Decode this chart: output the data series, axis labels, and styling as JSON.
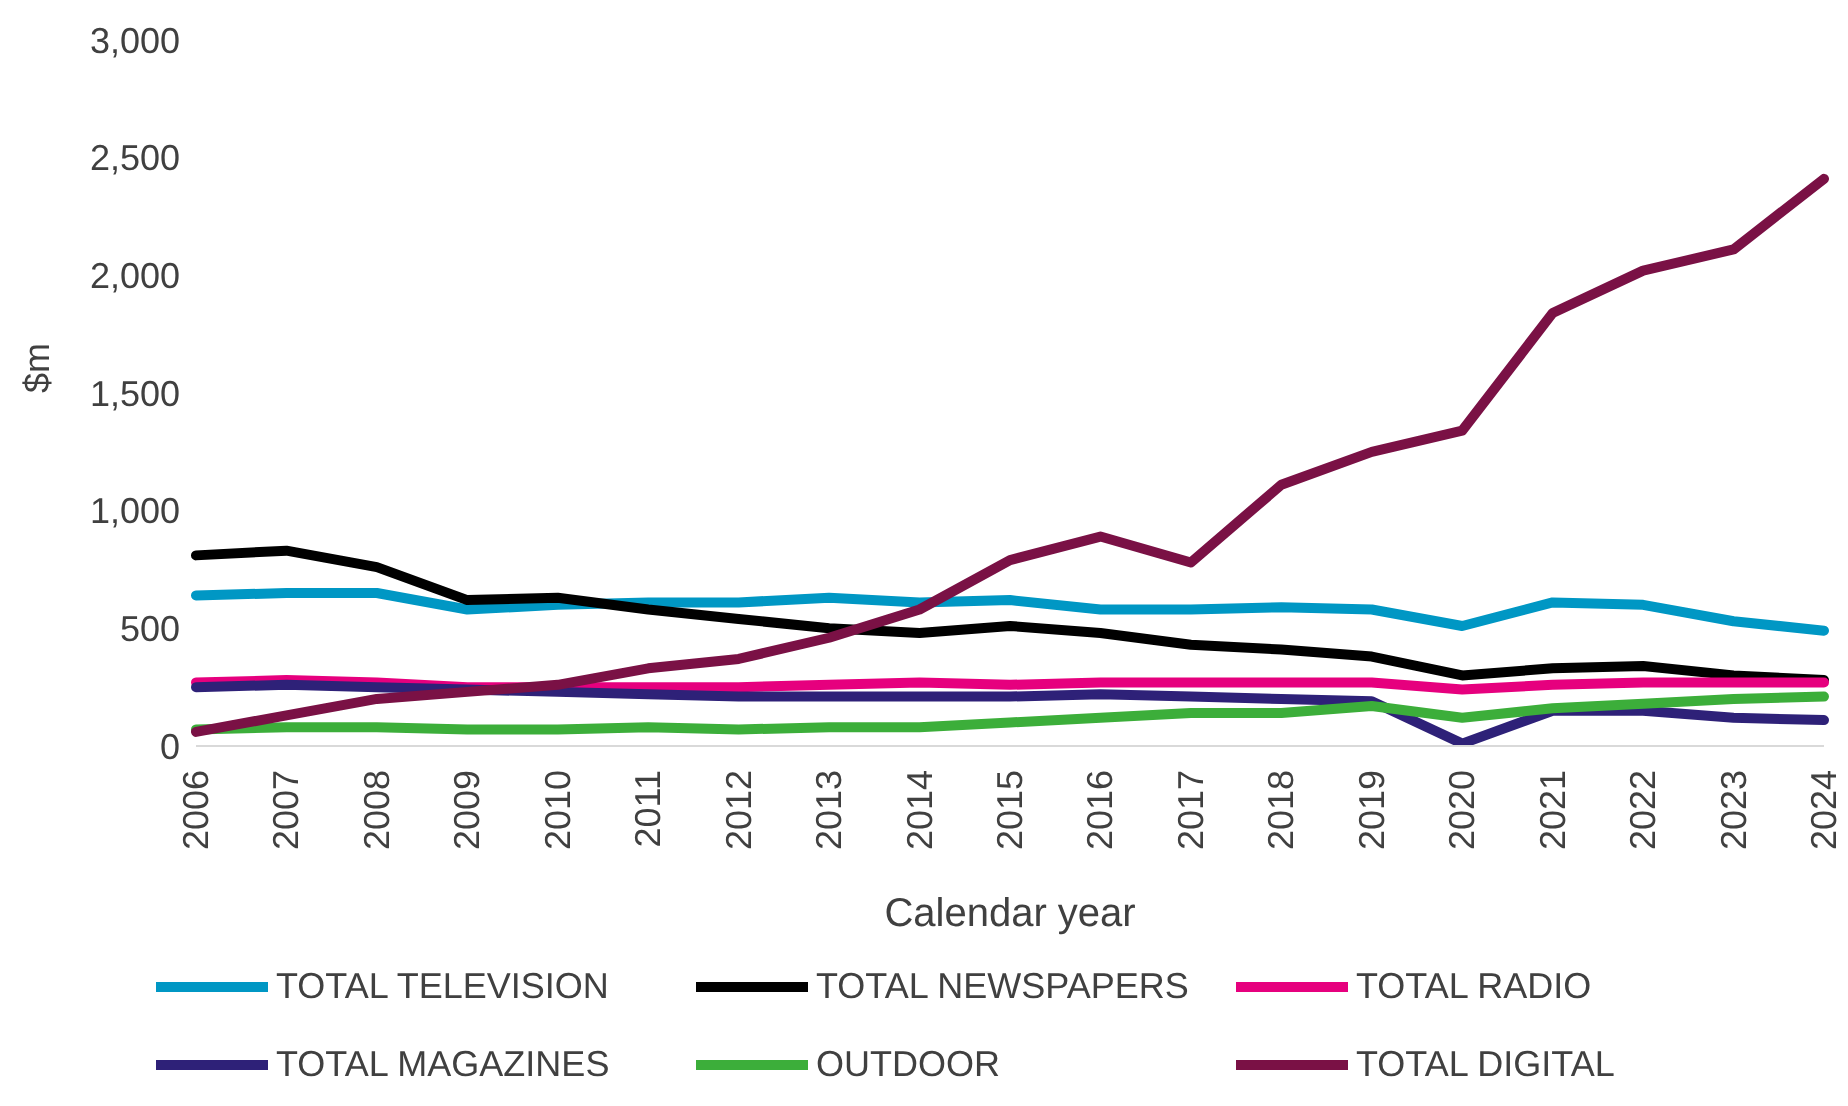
{
  "chart_data": {
    "type": "line",
    "xlabel": "Calendar year",
    "ylabel": "$m",
    "categories": [
      "2006",
      "2007",
      "2008",
      "2009",
      "2010",
      "2011",
      "2012",
      "2013",
      "2014",
      "2015",
      "2016",
      "2017",
      "2018",
      "2019",
      "2020",
      "2021",
      "2022",
      "2023",
      "2024"
    ],
    "ylim": [
      0,
      3000
    ],
    "yticks": [
      {
        "value": 0,
        "label": "0"
      },
      {
        "value": 500,
        "label": "500"
      },
      {
        "value": 1000,
        "label": "1,000"
      },
      {
        "value": 1500,
        "label": "1,500"
      },
      {
        "value": 2000,
        "label": "2,000"
      },
      {
        "value": 2500,
        "label": "2,500"
      },
      {
        "value": 3000,
        "label": "3,000"
      }
    ],
    "grid": false,
    "legend": "bottom",
    "marker": "none",
    "series": [
      {
        "name": "TOTAL TELEVISION",
        "color": "#0097c4",
        "values": [
          640,
          650,
          650,
          580,
          600,
          610,
          610,
          630,
          610,
          620,
          580,
          580,
          590,
          580,
          510,
          610,
          600,
          530,
          490
        ]
      },
      {
        "name": "TOTAL NEWSPAPERS",
        "color": "#000000",
        "values": [
          810,
          830,
          760,
          620,
          630,
          580,
          540,
          500,
          480,
          510,
          480,
          430,
          410,
          380,
          300,
          330,
          340,
          300,
          280
        ]
      },
      {
        "name": "TOTAL RADIO",
        "color": "#e6007e",
        "values": [
          270,
          280,
          270,
          250,
          250,
          250,
          250,
          260,
          270,
          260,
          270,
          270,
          270,
          270,
          240,
          260,
          270,
          270,
          270
        ]
      },
      {
        "name": "TOTAL MAGAZINES",
        "color": "#2e2178",
        "values": [
          250,
          260,
          250,
          240,
          230,
          220,
          210,
          210,
          210,
          210,
          220,
          210,
          200,
          190,
          10,
          150,
          150,
          120,
          110
        ]
      },
      {
        "name": "OUTDOOR",
        "color": "#3cae3a",
        "values": [
          70,
          80,
          80,
          70,
          70,
          80,
          70,
          80,
          80,
          100,
          120,
          140,
          140,
          170,
          120,
          160,
          180,
          200,
          210
        ]
      },
      {
        "name": "TOTAL DIGITAL",
        "color": "#7a1145",
        "values": [
          60,
          130,
          200,
          230,
          260,
          330,
          370,
          460,
          580,
          790,
          890,
          780,
          1110,
          1250,
          1340,
          1840,
          2020,
          2110,
          2410
        ]
      }
    ]
  }
}
